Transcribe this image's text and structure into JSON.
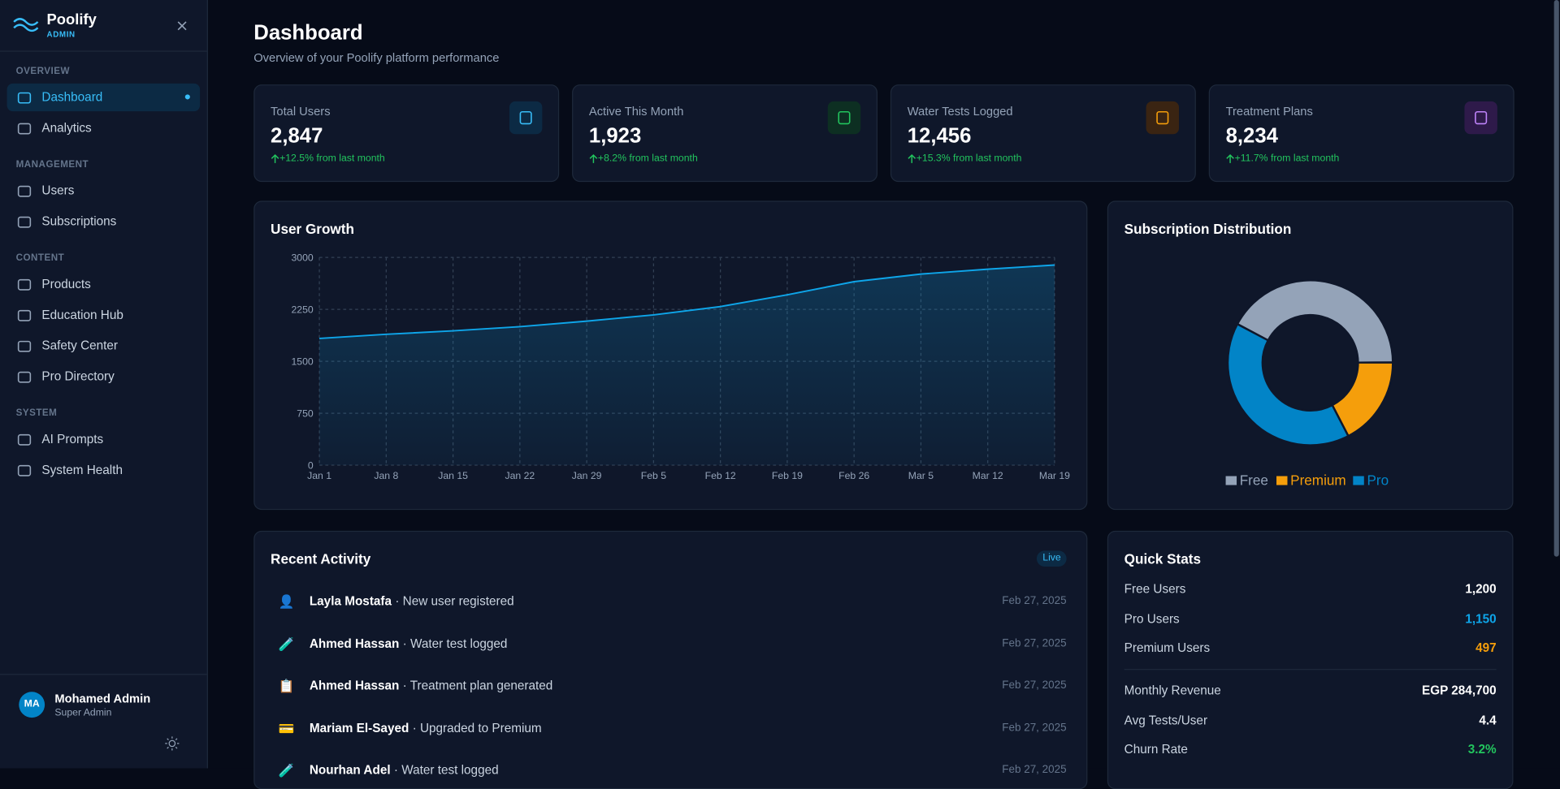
{
  "sidebar": {
    "brand": "Poolify",
    "brand_sub": "ADMIN",
    "sections": [
      {
        "title": "OVERVIEW",
        "items": [
          "Dashboard",
          "Analytics"
        ]
      },
      {
        "title": "MANAGEMENT",
        "items": [
          "Users",
          "Subscriptions"
        ]
      },
      {
        "title": "CONTENT",
        "items": [
          "Products",
          "Education Hub",
          "Safety Center",
          "Pro Directory"
        ]
      },
      {
        "title": "SYSTEM",
        "items": [
          "AI Prompts",
          "System Health"
        ]
      }
    ],
    "user": {
      "initials": "MA",
      "name": "Mohamed Admin",
      "role": "Super Admin"
    }
  },
  "header": {
    "title": "Dashboard",
    "subtitle": "Overview of your Poolify platform performance"
  },
  "stats": [
    {
      "label": "Total Users",
      "value": "2,847",
      "change": "+12.5% from last month",
      "color": "#38bdf8",
      "bg": "#0c2a44"
    },
    {
      "label": "Active This Month",
      "value": "1,923",
      "change": "+8.2% from last month",
      "color": "#22c55e",
      "bg": "#0d2f22"
    },
    {
      "label": "Water Tests Logged",
      "value": "12,456",
      "change": "+15.3% from last month",
      "color": "#f59e0b",
      "bg": "#3a2412"
    },
    {
      "label": "Treatment Plans",
      "value": "8,234",
      "change": "+11.7% from last month",
      "color": "#c084fc",
      "bg": "#2e1a4a"
    }
  ],
  "chart_data": [
    {
      "type": "line",
      "title": "User Growth",
      "categories": [
        "Jan 1",
        "Jan 8",
        "Jan 15",
        "Jan 22",
        "Jan 29",
        "Feb 5",
        "Feb 12",
        "Feb 19",
        "Feb 26",
        "Mar 5",
        "Mar 12",
        "Mar 19"
      ],
      "values": [
        1830,
        1890,
        1940,
        2000,
        2080,
        2170,
        2290,
        2460,
        2650,
        2760,
        2830,
        2890
      ],
      "color": "#0ea5e9",
      "ylim": [
        0,
        3000
      ],
      "yticks": [
        0,
        750,
        1500,
        2250,
        3000
      ],
      "grid": true
    },
    {
      "type": "pie",
      "title": "Subscription Distribution",
      "categories": [
        "Free",
        "Premium",
        "Pro"
      ],
      "values": [
        1200,
        497,
        1150
      ],
      "colors": [
        "#94a3b8",
        "#f59e0b",
        "#0284c7"
      ],
      "donut": true
    }
  ],
  "activity": {
    "title": "Recent Activity",
    "badge": "Live",
    "rows": [
      {
        "icon": "👤",
        "name": "Layla Mostafa",
        "action": "· New user registered",
        "date": "Feb 27, 2025"
      },
      {
        "icon": "🧪",
        "name": "Ahmed Hassan",
        "action": "· Water test logged",
        "date": "Feb 27, 2025"
      },
      {
        "icon": "📋",
        "name": "Ahmed Hassan",
        "action": "· Treatment plan generated",
        "date": "Feb 27, 2025"
      },
      {
        "icon": "💳",
        "name": "Mariam El-Sayed",
        "action": "· Upgraded to Premium",
        "date": "Feb 27, 2025"
      },
      {
        "icon": "🧪",
        "name": "Nourhan Adel",
        "action": "· Water test logged",
        "date": "Feb 27, 2025"
      }
    ]
  },
  "quick_stats": {
    "title": "Quick Stats",
    "rows": [
      {
        "label": "Free Users",
        "value": "1,200",
        "color": "#ffffff"
      },
      {
        "label": "Pro Users",
        "value": "1,150",
        "color": "#0ea5e9"
      },
      {
        "label": "Premium Users",
        "value": "497",
        "color": "#f59e0b"
      },
      {
        "label": "Monthly Revenue",
        "value": "EGP 284,700",
        "color": "#ffffff"
      },
      {
        "label": "Avg Tests/User",
        "value": "4.4",
        "color": "#ffffff"
      },
      {
        "label": "Churn Rate",
        "value": "3.2%",
        "color": "#22c55e"
      }
    ]
  }
}
